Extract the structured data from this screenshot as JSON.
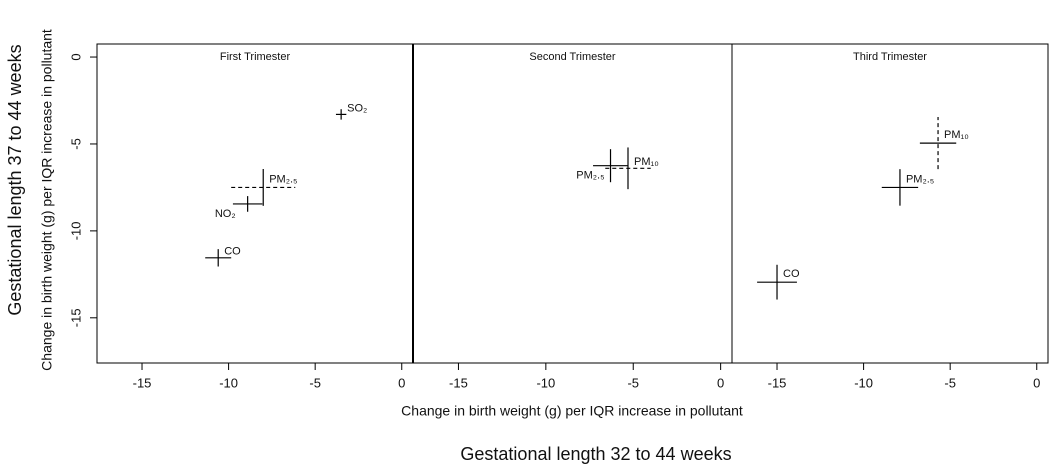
{
  "ylabel": "Change in birth weight (g) per IQR increase in pollutant",
  "xlabel": "Change in birth weight (g) per IQR increase in pollutant",
  "row_label": "Gestational length 37 to 44 weeks",
  "column_label": "Gestational length 32 to 44 weeks",
  "chart_data": [
    {
      "type": "scatter",
      "title": "First Trimester",
      "xlim": [
        -17.6,
        0.65
      ],
      "xticks": [
        -15,
        -10,
        -5,
        0
      ],
      "ylim": [
        -17.6,
        0.75
      ],
      "yticks": [
        0,
        -5,
        -10,
        -15
      ],
      "points": [
        {
          "label": "SO₂",
          "x": -3.5,
          "y": -3.3,
          "xerr": 0.3,
          "yerr": 0.3
        },
        {
          "label": "PM₂.₅",
          "x": -8.0,
          "y": -7.5,
          "xerr": 1.85,
          "yerr": 1.06,
          "dashed": "x"
        },
        {
          "label": "NO₂",
          "x": -8.9,
          "y": -8.45,
          "xerr": 0.85,
          "yerr": 0.45
        },
        {
          "label": "CO",
          "x": -10.6,
          "y": -11.55,
          "xerr": 0.75,
          "yerr": 0.5
        }
      ]
    },
    {
      "type": "scatter",
      "title": "Second Trimester",
      "xlim": [
        -17.6,
        0.65
      ],
      "xticks": [
        -15,
        -10,
        -5,
        0
      ],
      "ylim": [
        -17.6,
        0.75
      ],
      "points": [
        {
          "label": "PM₁₀",
          "x": -5.3,
          "y": -6.4,
          "xerr": 1.3,
          "yerr": 1.2,
          "dashed": "x"
        },
        {
          "label": "PM₂.₅",
          "x": -6.3,
          "y": -6.25,
          "xerr": 1.0,
          "yerr": 0.95
        }
      ]
    },
    {
      "type": "scatter",
      "title": "Third Trimester",
      "xlim": [
        -17.6,
        0.65
      ],
      "xticks": [
        -15,
        -10,
        -5,
        0
      ],
      "ylim": [
        -17.6,
        0.75
      ],
      "points": [
        {
          "label": "PM₁₀",
          "x": -5.7,
          "y": -4.95,
          "xerr": 1.05,
          "yerr": 1.5,
          "dashed": "y"
        },
        {
          "label": "PM₂.₅",
          "x": -7.9,
          "y": -7.5,
          "xerr": 1.05,
          "yerr": 1.05
        },
        {
          "label": "CO",
          "x": -15.0,
          "y": -12.95,
          "xerr": 1.15,
          "yerr": 1.0
        }
      ]
    }
  ]
}
